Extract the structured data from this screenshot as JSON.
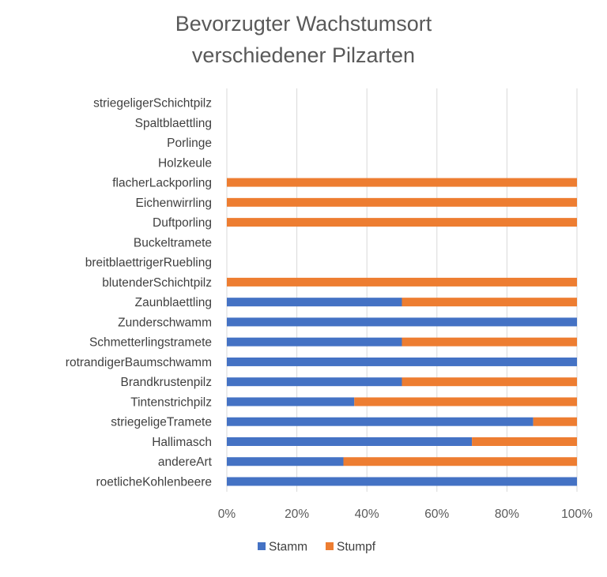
{
  "chart_data": {
    "type": "bar",
    "orientation": "horizontal",
    "stacked": "percent",
    "title_lines": [
      "Bevorzugter Wachstumsort",
      "verschiedener Pilzarten"
    ],
    "categories": [
      "roetlicheKohlenbeere",
      "andereArt",
      "Hallimasch",
      "striegeligeTramete",
      "Tintenstrichpilz",
      "Brandkrustenpilz",
      "rotrandigerBaumschwamm",
      "Schmetterlingstramete",
      "Zunderschwamm",
      "Zaunblaettling",
      "blutenderSchichtpilz",
      "breitblaettrigerRuebling",
      "Buckeltramete",
      "Duftporling",
      "Eichenwirrling",
      "flacherLackporling",
      "Holzkeule",
      "Porlinge",
      "Spaltblaettling",
      "striegeligerSchichtpilz"
    ],
    "series": [
      {
        "name": "Stamm",
        "color": "#4472C4",
        "values": [
          100,
          33.3,
          70,
          87.5,
          36.4,
          50,
          100,
          50,
          100,
          50,
          0,
          0,
          0,
          0,
          0,
          0,
          0,
          0,
          0,
          0
        ]
      },
      {
        "name": "Stumpf",
        "color": "#ED7D31",
        "values": [
          0,
          66.7,
          30,
          12.5,
          63.6,
          50,
          0,
          50,
          0,
          50,
          100,
          0,
          0,
          100,
          100,
          100,
          0,
          0,
          0,
          0
        ]
      }
    ],
    "xlim": [
      0,
      100
    ],
    "xticks": [
      "0%",
      "20%",
      "40%",
      "60%",
      "80%",
      "100%"
    ],
    "grid": true,
    "legend_position": "bottom"
  }
}
